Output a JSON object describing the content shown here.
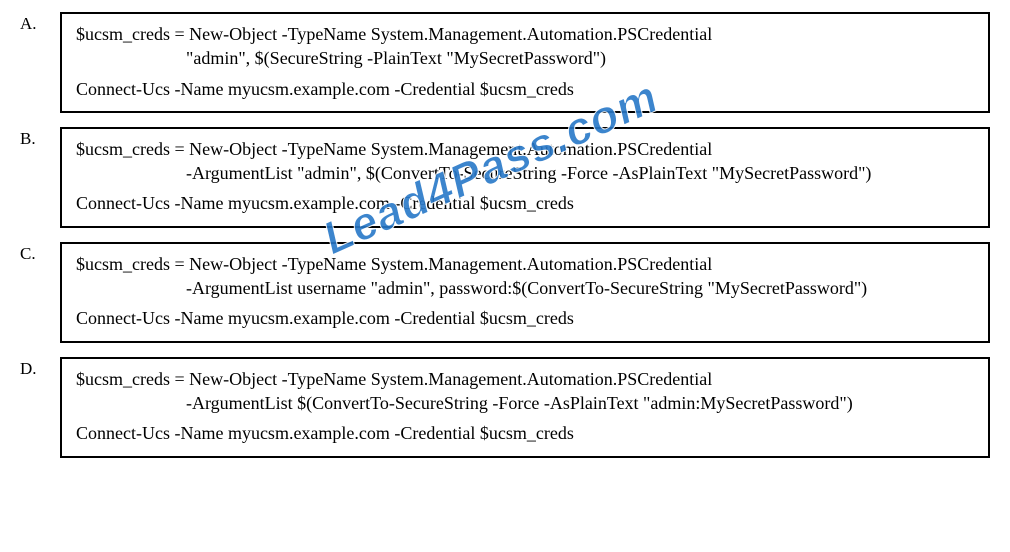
{
  "options": [
    {
      "letter": "A.",
      "lines": [
        "$ucsm_creds = New-Object -TypeName System.Management.Automation.PSCredential",
        "\"admin\", $(SecureString -PlainText \"MySecretPassword\")",
        "",
        "Connect-Ucs -Name myucsm.example.com -Credential $ucsm_creds"
      ],
      "indents": [
        false,
        true,
        false,
        false
      ]
    },
    {
      "letter": "B.",
      "lines": [
        "$ucsm_creds = New-Object -TypeName System.Management.Automation.PSCredential",
        "-ArgumentList \"admin\", $(ConvertTo-SecureString -Force -AsPlainText \"MySecretPassword\")",
        "",
        "Connect-Ucs -Name myucsm.example.com -Credential $ucsm_creds"
      ],
      "indents": [
        false,
        true,
        false,
        false
      ]
    },
    {
      "letter": "C.",
      "lines": [
        "$ucsm_creds = New-Object -TypeName System.Management.Automation.PSCredential",
        "-ArgumentList username \"admin\", password:$(ConvertTo-SecureString \"MySecretPassword\")",
        "",
        "Connect-Ucs -Name myucsm.example.com -Credential $ucsm_creds"
      ],
      "indents": [
        false,
        true,
        false,
        false
      ]
    },
    {
      "letter": "D.",
      "lines": [
        "$ucsm_creds = New-Object -TypeName System.Management.Automation.PSCredential",
        "-ArgumentList $(ConvertTo-SecureString -Force -AsPlainText \"admin:MySecretPassword\")",
        "",
        "Connect-Ucs -Name myucsm.example.com -Credential $ucsm_creds"
      ],
      "indents": [
        false,
        true,
        false,
        false
      ]
    }
  ],
  "watermark": "Lead4Pass.com",
  "colors": {
    "border": "#000000",
    "text": "#000000",
    "background": "#ffffff",
    "watermark": "#2878c8"
  }
}
